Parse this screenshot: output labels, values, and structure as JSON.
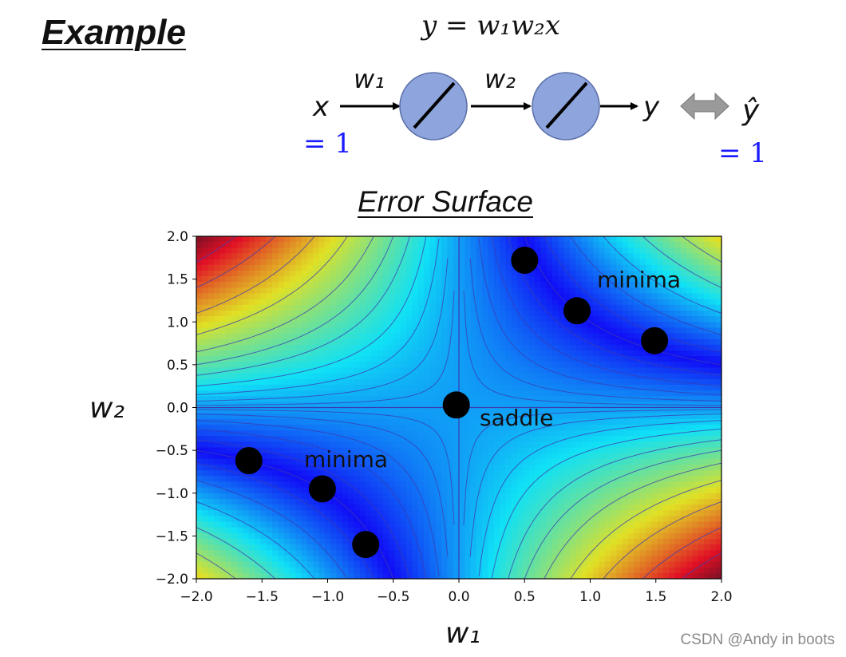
{
  "header": {
    "title": "Example",
    "equation": "y = w₁w₂x"
  },
  "network": {
    "input_label": "x",
    "input_value": "= 1",
    "w1_label": "w₁",
    "w2_label": "w₂",
    "output_label": "y",
    "target_label": "ŷ",
    "target_value": "= 1",
    "neuron_color": "#8ea4dc",
    "arrow_color": "#9a9a9a"
  },
  "surface": {
    "title": "Error Surface",
    "xlabel": "w₁",
    "ylabel": "w₂",
    "xlim": [
      -2.0,
      2.0
    ],
    "ylim": [
      -2.0,
      2.0
    ],
    "x_ticks": [
      "−2.0",
      "−1.5",
      "−1.0",
      "−0.5",
      "0.0",
      "0.5",
      "1.0",
      "1.5",
      "2.0"
    ],
    "y_ticks": [
      "2.0",
      "1.5",
      "1.0",
      "0.5",
      "0.0",
      "−0.5",
      "−1.0",
      "−1.5",
      "−2.0"
    ],
    "annotations": {
      "minima_upper": "minima",
      "minima_lower": "minima",
      "saddle": "saddle"
    }
  },
  "chart_data": {
    "type": "heatmap",
    "title": "Error Surface",
    "xlabel": "w₁",
    "ylabel": "w₂",
    "xlim": [
      -2.0,
      2.0
    ],
    "ylim": [
      -2.0,
      2.0
    ],
    "function": "(1 - w1*w2)^2",
    "colormap": "jet",
    "points": [
      {
        "x": 0.5,
        "y": 1.72
      },
      {
        "x": 0.9,
        "y": 1.13
      },
      {
        "x": 1.49,
        "y": 0.78
      },
      {
        "x": -0.02,
        "y": 0.03
      },
      {
        "x": -1.6,
        "y": -0.62
      },
      {
        "x": -1.04,
        "y": -0.95
      },
      {
        "x": -0.71,
        "y": -1.6
      }
    ],
    "point_color": "#000000"
  },
  "footer": {
    "watermark": "CSDN @Andy in boots"
  }
}
